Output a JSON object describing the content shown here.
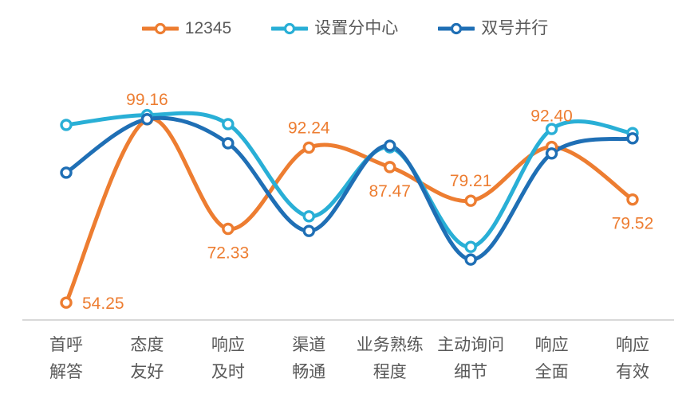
{
  "legend": {
    "items": [
      {
        "label": "12345",
        "color": "#ED7D31"
      },
      {
        "label": "设置分中心",
        "color": "#29AFD6"
      },
      {
        "label": "双号并行",
        "color": "#1F6FB5"
      }
    ]
  },
  "chart_data": {
    "type": "line",
    "smooth": true,
    "title": "",
    "xlabel": "",
    "ylabel": "",
    "grid": false,
    "y_axis_visible": false,
    "legend_position": "top",
    "axis_line_color": "#D9D9D9",
    "tick_label_color": "#595959",
    "ylim": [
      50,
      105
    ],
    "categories": [
      [
        "首呼",
        "解答"
      ],
      [
        "态度",
        "友好"
      ],
      [
        "响应",
        "及时"
      ],
      [
        "渠道",
        "畅通"
      ],
      [
        "业务熟练",
        "程度"
      ],
      [
        "主动询问",
        "细节"
      ],
      [
        "响应",
        "全面"
      ],
      [
        "响应",
        "有效"
      ]
    ],
    "series": [
      {
        "name": "12345",
        "color": "#ED7D31",
        "values": [
          54.25,
          99.16,
          72.33,
          92.24,
          87.47,
          79.21,
          92.4,
          79.52
        ],
        "data_labels": [
          "54.25",
          "99.16",
          "72.33",
          "92.24",
          "87.47",
          "79.21",
          "92.40",
          "79.52"
        ],
        "label_positions": [
          "right",
          "above",
          "below",
          "above",
          "below",
          "above",
          "above-high",
          "below"
        ]
      },
      {
        "name": "设置分中心",
        "color": "#29AFD6",
        "values": [
          97.8,
          100.2,
          98.0,
          75.4,
          92.3,
          67.9,
          96.8,
          95.8
        ],
        "data_labels": null,
        "label_positions": null
      },
      {
        "name": "双号并行",
        "color": "#1F6FB5",
        "values": [
          86.1,
          99.2,
          93.3,
          71.8,
          92.7,
          64.8,
          90.8,
          94.5
        ],
        "data_labels": null,
        "label_positions": null
      }
    ]
  }
}
